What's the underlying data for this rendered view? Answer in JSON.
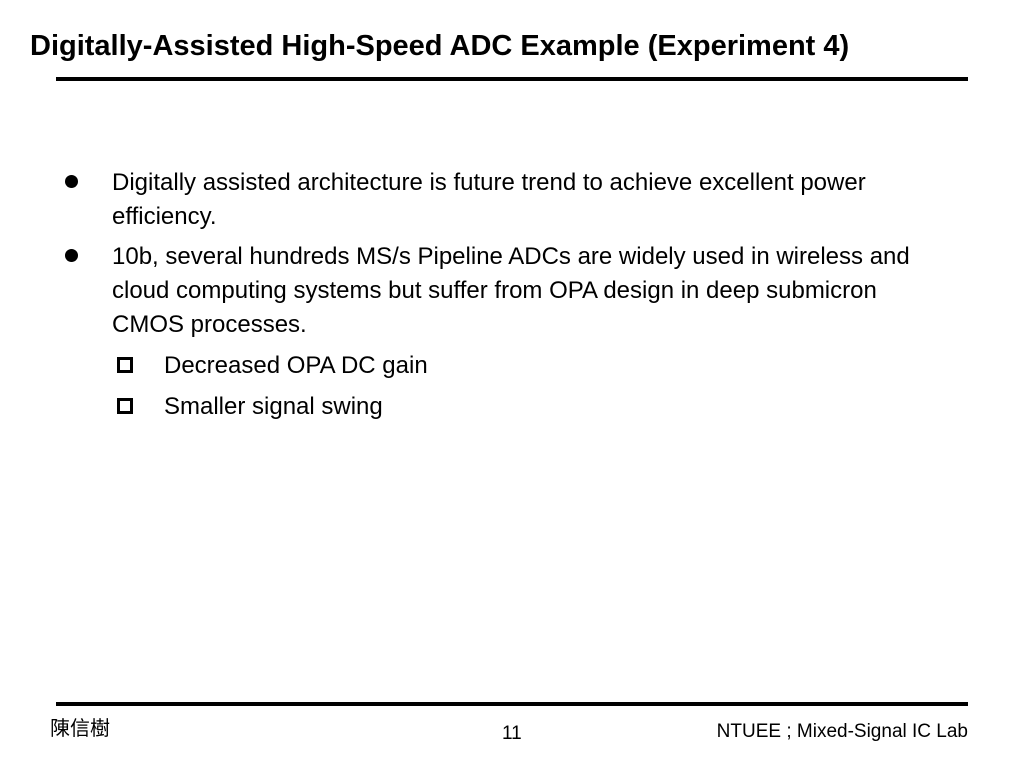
{
  "slide": {
    "title": "Digitally-Assisted High-Speed ADC Example (Experiment 4)",
    "bullets": [
      {
        "text": "Digitally assisted architecture is future trend to achieve excellent power efficiency."
      },
      {
        "text": "10b, several hundreds MS/s Pipeline ADCs are widely used in wireless and cloud computing systems but suffer from OPA design in deep submicron CMOS processes.",
        "sub_bullets": [
          "Decreased OPA DC gain",
          "Smaller signal swing"
        ]
      }
    ]
  },
  "footer": {
    "author": "陳信樹",
    "page_number": "11",
    "lab": "NTUEE ; Mixed-Signal IC Lab"
  }
}
